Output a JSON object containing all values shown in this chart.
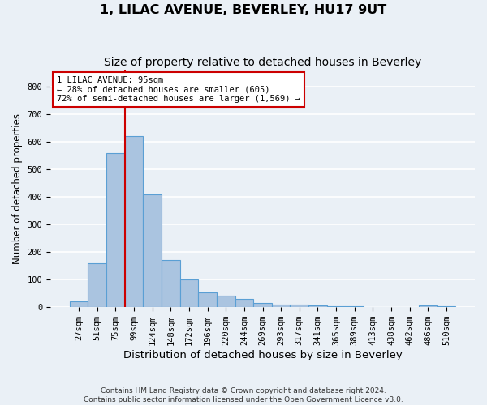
{
  "title": "1, LILAC AVENUE, BEVERLEY, HU17 9UT",
  "subtitle": "Size of property relative to detached houses in Beverley",
  "xlabel": "Distribution of detached houses by size in Beverley",
  "ylabel": "Number of detached properties",
  "categories": [
    "27sqm",
    "51sqm",
    "75sqm",
    "99sqm",
    "124sqm",
    "148sqm",
    "172sqm",
    "196sqm",
    "220sqm",
    "244sqm",
    "269sqm",
    "293sqm",
    "317sqm",
    "341sqm",
    "365sqm",
    "389sqm",
    "413sqm",
    "438sqm",
    "462sqm",
    "486sqm",
    "510sqm"
  ],
  "values": [
    20,
    160,
    560,
    620,
    410,
    170,
    102,
    55,
    42,
    30,
    14,
    10,
    9,
    7,
    4,
    3,
    2,
    1,
    0,
    7,
    5
  ],
  "bar_color": "#aac4e0",
  "bar_edge_color": "#5a9fd4",
  "background_color": "#eaf0f6",
  "plot_bg_color": "#eaf0f6",
  "grid_color": "#ffffff",
  "annotation_line1": "1 LILAC AVENUE: 95sqm",
  "annotation_line2": "← 28% of detached houses are smaller (605)",
  "annotation_line3": "72% of semi-detached houses are larger (1,569) →",
  "annotation_box_color": "#ffffff",
  "annotation_box_edge": "#cc0000",
  "vline_color": "#cc0000",
  "vline_x": 2.5,
  "ylim": [
    0,
    860
  ],
  "yticks": [
    0,
    100,
    200,
    300,
    400,
    500,
    600,
    700,
    800
  ],
  "footnote": "Contains HM Land Registry data © Crown copyright and database right 2024.\nContains public sector information licensed under the Open Government Licence v3.0.",
  "title_fontsize": 11.5,
  "subtitle_fontsize": 10,
  "tick_fontsize": 7.5,
  "xlabel_fontsize": 9.5,
  "ylabel_fontsize": 8.5
}
